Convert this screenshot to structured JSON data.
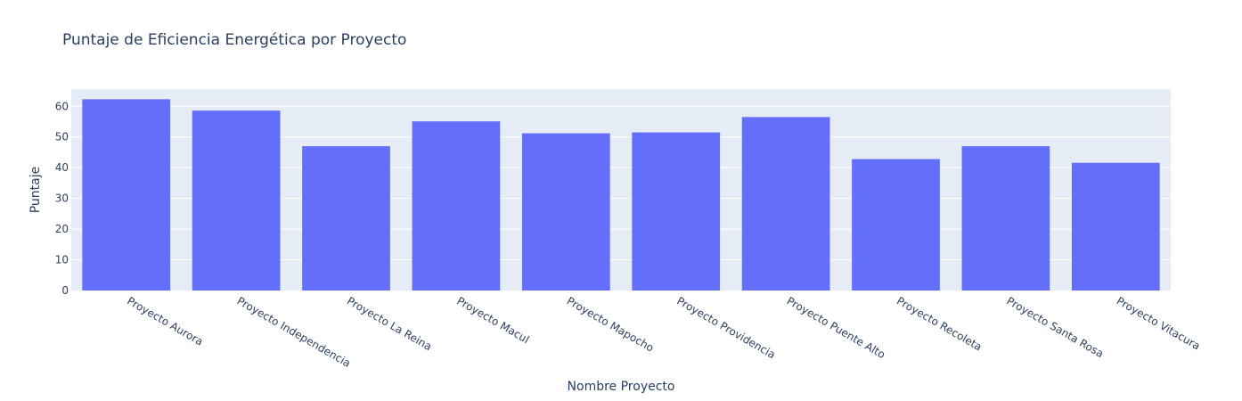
{
  "chart_data": {
    "type": "bar",
    "title": "Puntaje de Eficiencia Energética por Proyecto",
    "xlabel": "Nombre Proyecto",
    "ylabel": "Puntaje",
    "categories": [
      "Proyecto Aurora",
      "Proyecto Independencia",
      "Proyecto La Reina",
      "Proyecto Macul",
      "Proyecto Mapocho",
      "Proyecto Providencia",
      "Proyecto Puente Alto",
      "Proyecto Recoleta",
      "Proyecto Santa Rosa",
      "Proyecto Vitacura"
    ],
    "values": [
      62.3,
      58.6,
      47.0,
      55.1,
      51.2,
      51.5,
      56.5,
      42.8,
      47.0,
      41.6
    ],
    "ylim": [
      0,
      65.6
    ],
    "yticks": [
      0,
      10,
      20,
      30,
      40,
      50,
      60
    ],
    "grid": true,
    "legend": "none",
    "colors": {
      "bar": "#636efa",
      "plot_background": "#e5ecf6",
      "gridline": "#ffffff",
      "text": "#2a3f5f"
    }
  }
}
